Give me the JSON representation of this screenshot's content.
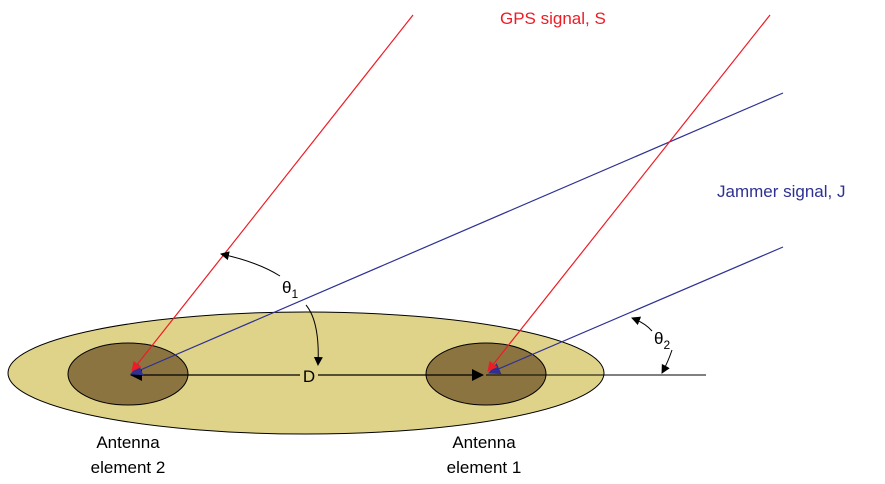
{
  "diagram": {
    "signals": {
      "gps_label": "GPS signal, S",
      "jammer_label": "Jammer signal, J"
    },
    "angles": {
      "theta1": {
        "symbol": "θ",
        "subscript": "1"
      },
      "theta2": {
        "symbol": "θ",
        "subscript": "2"
      }
    },
    "baseline_label": "D",
    "antennas": [
      {
        "line1": "Antenna",
        "line2": "element 2"
      },
      {
        "line1": "Antenna",
        "line2": "element 1"
      }
    ],
    "colors": {
      "gps": "#ee1c25",
      "jammer": "#2e3192",
      "platform_fill": "#dfd38a",
      "element_fill": "#8c7441",
      "outline": "#000000",
      "text": "#000000"
    }
  }
}
